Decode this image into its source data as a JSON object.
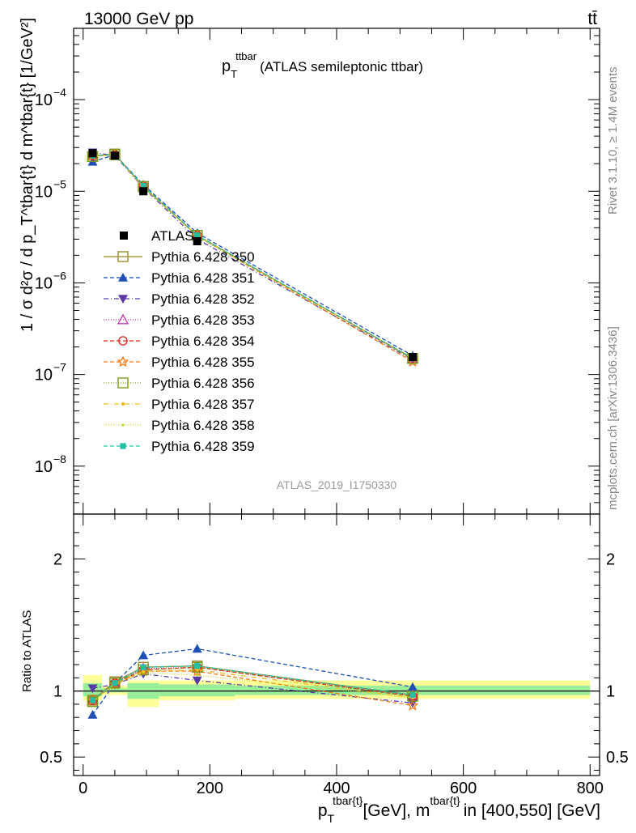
{
  "header": {
    "left_label": "13000 GeV pp",
    "right_label": "tt̄"
  },
  "side_labels": {
    "rivet": "Rivet 3.1.10, ≥ 1.4M events",
    "mcplots": "mcplots.cern.ch [arXiv:1306.3436]"
  },
  "chart_data": [
    {
      "type": "line",
      "title": "p_T^ttbar (ATLAS semileptonic ttbar)",
      "title_parts": {
        "main": "p",
        "sub": "T",
        "sup": "ttbar",
        "suffix": "(ATLAS semileptonic ttbar)"
      },
      "analysis_label": "ATLAS_2019_I1750330",
      "ylabel": "1 / σ d²σ / d p_T^tbar{t} d m^tbar{t} [1/GeV²]",
      "yscale": "log",
      "ylim": [
        3e-09,
        0.0006
      ],
      "xlim": [
        -15,
        815
      ],
      "y_ticks": [
        {
          "v": 1e-08,
          "label": "10",
          "sup": "−8"
        },
        {
          "v": 1e-07,
          "label": "10",
          "sup": "−7"
        },
        {
          "v": 1e-06,
          "label": "10",
          "sup": "−6"
        },
        {
          "v": 1e-05,
          "label": "10",
          "sup": "−5"
        },
        {
          "v": 0.0001,
          "label": "10",
          "sup": "−4"
        }
      ],
      "x": [
        15,
        50,
        95,
        180,
        520
      ],
      "data": {
        "name": "ATLAS",
        "values": [
          2.6e-05,
          2.45e-05,
          1e-05,
          2.85e-06,
          1.55e-07
        ]
      },
      "series": [
        {
          "name": "Pythia 6.428 350",
          "color": "#9a8a2a",
          "marker": "square-open",
          "dash": "",
          "values": [
            2.4e-05,
            2.55e-05,
            1.12e-05,
            3.3e-06,
            1.5e-07
          ]
        },
        {
          "name": "Pythia 6.428 351",
          "color": "#1f4fb4",
          "marker": "triangle-up",
          "dash": "5,3",
          "values": [
            2.1e-05,
            2.5e-05,
            1.18e-05,
            3.5e-06,
            1.6e-07
          ]
        },
        {
          "name": "Pythia 6.428 352",
          "color": "#5a3aa8",
          "marker": "triangle-down",
          "dash": "6,3,1,3",
          "values": [
            2.65e-05,
            2.45e-05,
            1.1e-05,
            3e-06,
            1.45e-07
          ]
        },
        {
          "name": "Pythia 6.428 353",
          "color": "#c03aa8",
          "marker": "triangle-open",
          "dash": "1,2",
          "values": [
            2.45e-05,
            2.5e-05,
            1.14e-05,
            3.3e-06,
            1.5e-07
          ]
        },
        {
          "name": "Pythia 6.428 354",
          "color": "#e02020",
          "marker": "circle-open",
          "dash": "5,3",
          "values": [
            2.45e-05,
            2.5e-05,
            1.14e-05,
            3.3e-06,
            1.48e-07
          ]
        },
        {
          "name": "Pythia 6.428 355",
          "color": "#f07a1a",
          "marker": "star-open",
          "dash": "5,3",
          "values": [
            2.45e-05,
            2.5e-05,
            1.13e-05,
            3.25e-06,
            1.38e-07
          ]
        },
        {
          "name": "Pythia 6.428 356",
          "color": "#7a9a1a",
          "marker": "square-open",
          "dash": "1,2",
          "values": [
            2.4e-05,
            2.5e-05,
            1.13e-05,
            3.3e-06,
            1.5e-07
          ]
        },
        {
          "name": "Pythia 6.428 357",
          "color": "#e8c020",
          "marker": "dot",
          "dash": "6,3,1,3",
          "values": [
            2.42e-05,
            2.5e-05,
            1.12e-05,
            3.3e-06,
            1.5e-07
          ]
        },
        {
          "name": "Pythia 6.428 358",
          "color": "#c8d820",
          "marker": "dot-small",
          "dash": "1,2",
          "values": [
            2.43e-05,
            2.5e-05,
            1.11e-05,
            3.2e-06,
            1.47e-07
          ]
        },
        {
          "name": "Pythia 6.428 359",
          "color": "#20c0a0",
          "marker": "square-filled",
          "dash": "5,3",
          "values": [
            2.45e-05,
            2.5e-05,
            1.15e-05,
            3.3e-06,
            1.5e-07
          ]
        }
      ]
    },
    {
      "type": "line",
      "ylabel": "Ratio to ATLAS",
      "ylim": [
        0.36,
        2.34
      ],
      "xlim": [
        -15,
        815
      ],
      "y_ticks": [
        0.5,
        1,
        2
      ],
      "x_ticks": [
        0,
        200,
        400,
        600,
        800
      ],
      "xlabel_parts": {
        "p": "p",
        "T": "T",
        "sup1": "tbar{t}",
        "mid": "[GeV], m",
        "sup2": "tbar{t}",
        "tail": "in [400,550] [GeV]"
      },
      "bands": [
        {
          "x0": 0,
          "x1": 30,
          "y_lo_outer": 0.93,
          "y_hi_outer": 1.12,
          "y_lo_inner": 0.96,
          "y_hi_inner": 1.06
        },
        {
          "x0": 30,
          "x1": 70,
          "y_lo_outer": 0.97,
          "y_hi_outer": 1.04,
          "y_lo_inner": 0.99,
          "y_hi_inner": 1.02
        },
        {
          "x0": 70,
          "x1": 120,
          "y_lo_outer": 0.88,
          "y_hi_outer": 1.08,
          "y_lo_inner": 0.94,
          "y_hi_inner": 1.06
        },
        {
          "x0": 120,
          "x1": 240,
          "y_lo_outer": 0.93,
          "y_hi_outer": 1.08,
          "y_lo_inner": 0.96,
          "y_hi_inner": 1.05
        },
        {
          "x0": 240,
          "x1": 800,
          "y_lo_outer": 0.94,
          "y_hi_outer": 1.08,
          "y_lo_inner": 0.97,
          "y_hi_inner": 1.04
        }
      ],
      "ratio_series": [
        [
          0.93,
          1.07,
          1.18,
          1.19,
          0.97
        ],
        [
          0.82,
          1.06,
          1.27,
          1.32,
          1.03
        ],
        [
          1.02,
          1.05,
          1.13,
          1.08,
          0.91
        ],
        [
          0.93,
          1.06,
          1.17,
          1.18,
          0.97
        ],
        [
          0.93,
          1.06,
          1.16,
          1.18,
          0.96
        ],
        [
          0.93,
          1.05,
          1.15,
          1.15,
          0.89
        ],
        [
          0.92,
          1.06,
          1.16,
          1.18,
          0.96
        ],
        [
          0.92,
          1.06,
          1.15,
          1.16,
          0.95
        ],
        [
          0.92,
          1.05,
          1.14,
          1.12,
          0.95
        ],
        [
          0.93,
          1.06,
          1.18,
          1.19,
          0.97
        ]
      ]
    }
  ]
}
